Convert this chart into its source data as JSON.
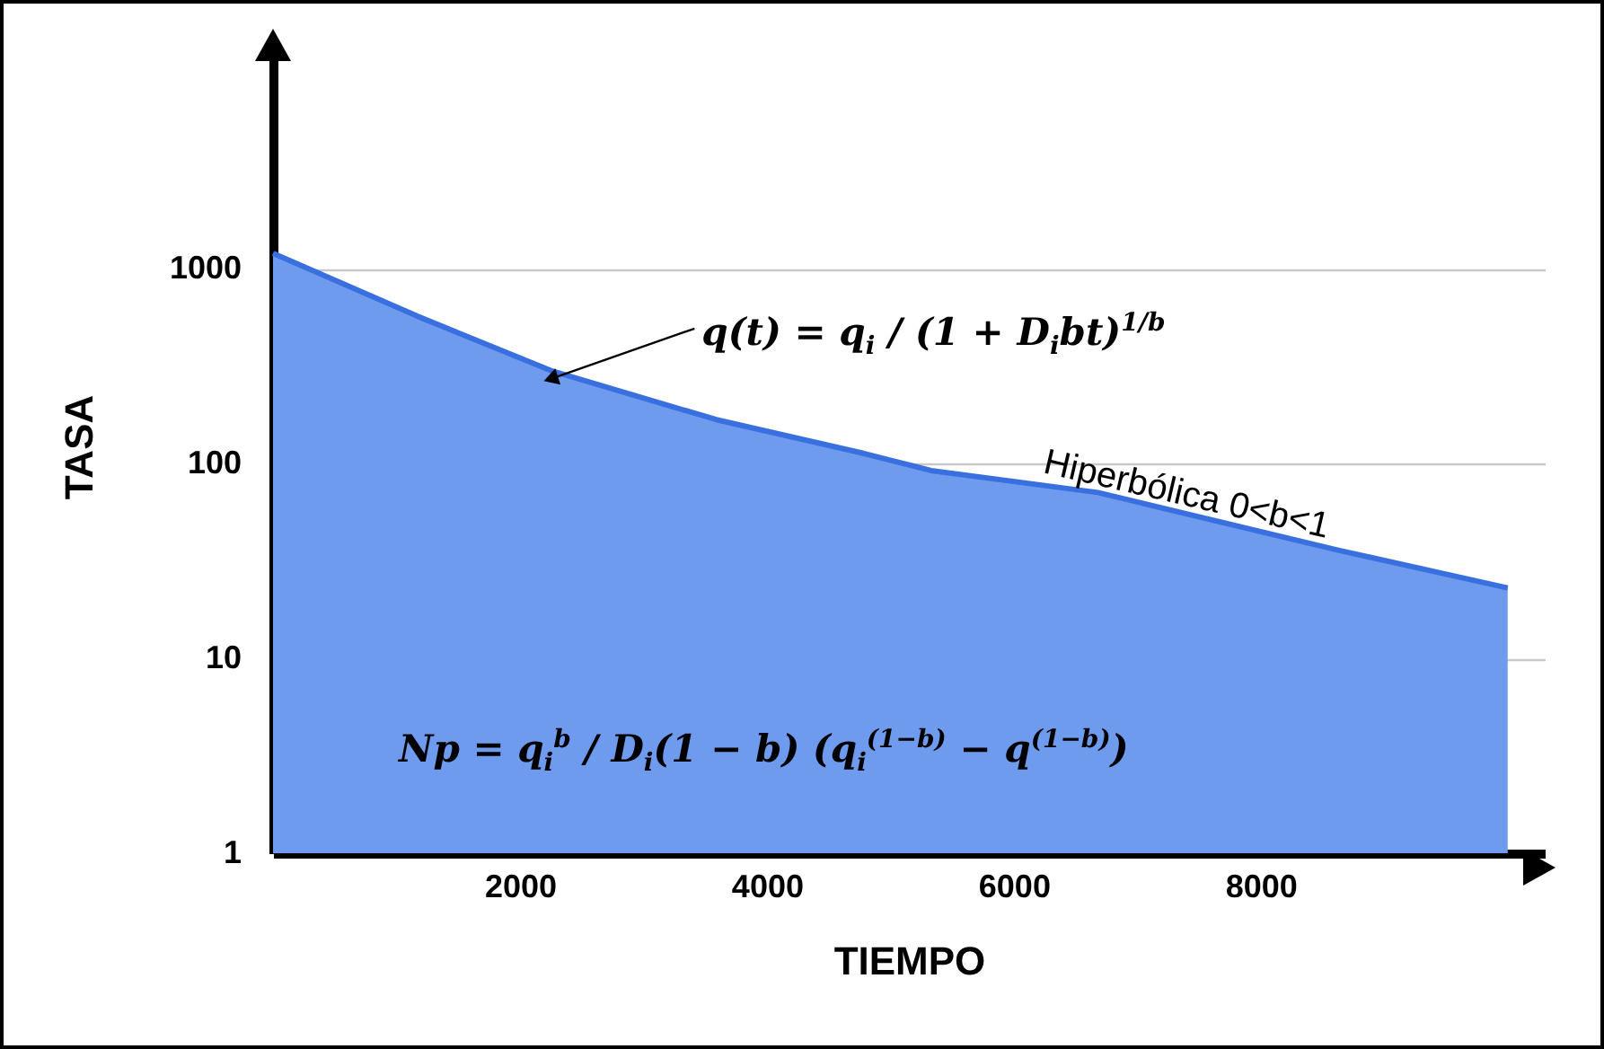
{
  "chart_data": {
    "type": "area",
    "xlabel": "TIEMPO",
    "ylabel": "TASA",
    "x": [
      0,
      1170,
      2250,
      3590,
      4750,
      5330,
      6680,
      8620,
      10000
    ],
    "series": [
      {
        "color": "#6f9bee",
        "values": [
          1200,
          570,
          300,
          168,
          114,
          92,
          71,
          36,
          23
        ]
      }
    ],
    "xlim": [
      0,
      10300
    ],
    "ylim": [
      1,
      15000
    ],
    "xticks": [
      2000,
      4000,
      6000,
      8000
    ],
    "yticks": [
      1,
      10,
      100,
      1000
    ],
    "log": "y",
    "grid": "y",
    "annotations": [
      {
        "text": "q(t) = q$_{i}$ / (1 + D$_{i}$bt)$^{1/b}$",
        "x": 2250,
        "y": 272
      },
      {
        "text": "Hiperbólica 0<b<1",
        "x": 7360,
        "y": 54
      },
      "Np = q$_{i}$$^{b}$ / D$_{i}$(1 − b) (q$_{i}$$^{(1−b)}$ − q$^{(1−b)}$)"
    ]
  }
}
